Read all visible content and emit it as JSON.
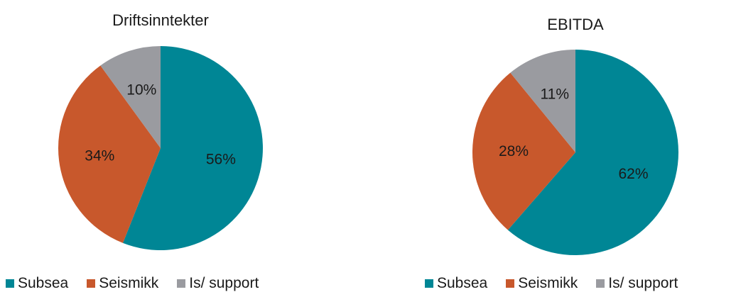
{
  "chart_data": [
    {
      "type": "pie",
      "title": "Driftsinntekter",
      "slices": [
        {
          "name": "Subsea",
          "value": 56,
          "label": "56%",
          "color": "#008695"
        },
        {
          "name": "Seismikk",
          "value": 34,
          "label": "34%",
          "color": "#c8582c"
        },
        {
          "name": "Is/ support",
          "value": 10,
          "label": "10%",
          "color": "#9a9ba0"
        }
      ],
      "legend_position": "bottom"
    },
    {
      "type": "pie",
      "title": "EBITDA",
      "slices": [
        {
          "name": "Subsea",
          "value": 62,
          "label": "62%",
          "color": "#008695"
        },
        {
          "name": "Seismikk",
          "value": 28,
          "label": "28%",
          "color": "#c8582c"
        },
        {
          "name": "Is/ support",
          "value": 11,
          "label": "11%",
          "color": "#9a9ba0"
        }
      ],
      "legend_position": "bottom"
    }
  ]
}
